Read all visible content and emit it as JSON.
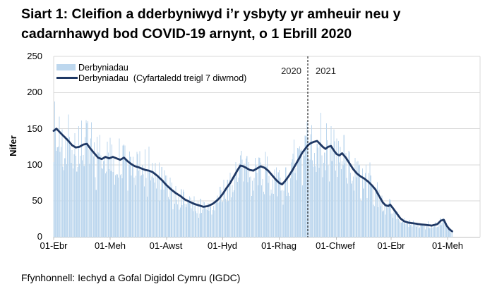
{
  "title": {
    "line1": "Siart 1: Cleifion a dderbyniwyd i’r ysbyty yr amheuir neu y",
    "line2": "cadarnhawyd bod COVID-19 arnynt, o 1 Ebrill 2020",
    "full": "Siart 1: Cleifion a dderbyniwyd i’r ysbyty yr amheuir neu y cadarnhawyd bod COVID-19 arnynt, o 1 Ebrill 2020"
  },
  "source_text": "Ffynhonnell: Iechyd a Gofal Digidol Cymru (IGDC)",
  "chart_data": {
    "type": "bar",
    "subtype": "daily bars + 7-day rolling average line",
    "title": "Siart 1: Cleifion a dderbyniwyd i’r ysbyty yr amheuir neu y cadarnhawyd bod COVID-19 arnynt, o 1 Ebrill 2020",
    "xlabel": "",
    "ylabel": "Nifer",
    "ylim": [
      0,
      250
    ],
    "y_ticks": [
      0,
      50,
      100,
      150,
      200,
      250
    ],
    "x_ticks": [
      "01-Ebr",
      "01-Meh",
      "01-Awst",
      "01-Hyd",
      "01-Rhag",
      "01-Chwef",
      "01-Ebr",
      "01-Meh"
    ],
    "x_tick_day_offsets": [
      0,
      61,
      122,
      183,
      244,
      306,
      365,
      426
    ],
    "x_start_label": "1 Ebrill 2020",
    "grid": true,
    "legend_position": "top-left-inside",
    "legend": {
      "bars_label": "Derbyniadau",
      "line_label": "Derbyniadau  (Cyfartaledd treigl 7 diwrnod)"
    },
    "year_labels": {
      "left_of_divider": "2020",
      "right_of_divider": "2021"
    },
    "year_divider_day": 275,
    "total_days": 432,
    "series": [
      {
        "name": "Derbyniadau (Cyfartaledd treigl 7 diwrnod)",
        "type": "line",
        "anchors_day_value": [
          [
            0,
            147
          ],
          [
            3,
            150
          ],
          [
            6,
            146
          ],
          [
            9,
            142
          ],
          [
            13,
            137
          ],
          [
            16,
            133
          ],
          [
            20,
            127
          ],
          [
            24,
            124
          ],
          [
            28,
            125
          ],
          [
            32,
            128
          ],
          [
            36,
            129
          ],
          [
            40,
            122
          ],
          [
            44,
            116
          ],
          [
            48,
            110
          ],
          [
            52,
            108
          ],
          [
            56,
            111
          ],
          [
            60,
            109
          ],
          [
            64,
            111
          ],
          [
            68,
            109
          ],
          [
            72,
            107
          ],
          [
            76,
            110
          ],
          [
            80,
            105
          ],
          [
            84,
            101
          ],
          [
            88,
            98
          ],
          [
            91,
            97
          ],
          [
            95,
            95
          ],
          [
            99,
            93
          ],
          [
            103,
            92
          ],
          [
            107,
            90
          ],
          [
            112,
            85
          ],
          [
            117,
            79
          ],
          [
            122,
            72
          ],
          [
            127,
            66
          ],
          [
            132,
            61
          ],
          [
            137,
            57
          ],
          [
            142,
            52
          ],
          [
            147,
            49
          ],
          [
            152,
            46
          ],
          [
            157,
            44
          ],
          [
            162,
            42
          ],
          [
            167,
            43
          ],
          [
            172,
            46
          ],
          [
            177,
            51
          ],
          [
            180,
            55
          ],
          [
            183,
            60
          ],
          [
            187,
            68
          ],
          [
            191,
            75
          ],
          [
            195,
            84
          ],
          [
            199,
            93
          ],
          [
            202,
            99
          ],
          [
            205,
            98
          ],
          [
            208,
            96
          ],
          [
            212,
            93
          ],
          [
            216,
            92
          ],
          [
            220,
            95
          ],
          [
            224,
            98
          ],
          [
            228,
            96
          ],
          [
            232,
            92
          ],
          [
            236,
            86
          ],
          [
            240,
            80
          ],
          [
            244,
            75
          ],
          [
            247,
            73
          ],
          [
            250,
            77
          ],
          [
            254,
            84
          ],
          [
            258,
            92
          ],
          [
            262,
            101
          ],
          [
            266,
            110
          ],
          [
            269,
            117
          ],
          [
            272,
            122
          ],
          [
            275,
            127
          ],
          [
            278,
            130
          ],
          [
            282,
            132
          ],
          [
            285,
            133
          ],
          [
            288,
            129
          ],
          [
            291,
            125
          ],
          [
            294,
            122
          ],
          [
            297,
            125
          ],
          [
            300,
            126
          ],
          [
            303,
            120
          ],
          [
            306,
            115
          ],
          [
            309,
            113
          ],
          [
            312,
            116
          ],
          [
            316,
            110
          ],
          [
            320,
            102
          ],
          [
            324,
            94
          ],
          [
            328,
            88
          ],
          [
            332,
            84
          ],
          [
            336,
            81
          ],
          [
            340,
            77
          ],
          [
            344,
            72
          ],
          [
            348,
            66
          ],
          [
            352,
            57
          ],
          [
            356,
            48
          ],
          [
            359,
            44
          ],
          [
            362,
            43
          ],
          [
            364,
            45
          ],
          [
            367,
            40
          ],
          [
            371,
            33
          ],
          [
            375,
            26
          ],
          [
            379,
            22
          ],
          [
            384,
            20
          ],
          [
            390,
            19
          ],
          [
            395,
            18
          ],
          [
            402,
            17
          ],
          [
            409,
            16
          ],
          [
            415,
            18
          ],
          [
            419,
            23
          ],
          [
            422,
            24
          ],
          [
            425,
            16
          ],
          [
            428,
            11
          ],
          [
            431,
            8
          ]
        ]
      },
      {
        "name": "Derbyniadau",
        "type": "bar",
        "derivation": "daily = avg7(day) * noise_factor",
        "noise": {
          "seed": 7,
          "base": 0.7,
          "span": 0.58,
          "weekend_factor": 0.82,
          "spike_p": 0.92,
          "spike_add": 0.18,
          "clamp": [
            0.5,
            1.4
          ]
        }
      }
    ],
    "colors": {
      "bar": "#bdd7ee",
      "line": "#1f3864",
      "grid": "#d9d9d9",
      "axis": "#bfbfbf",
      "divider": "#000000"
    }
  }
}
